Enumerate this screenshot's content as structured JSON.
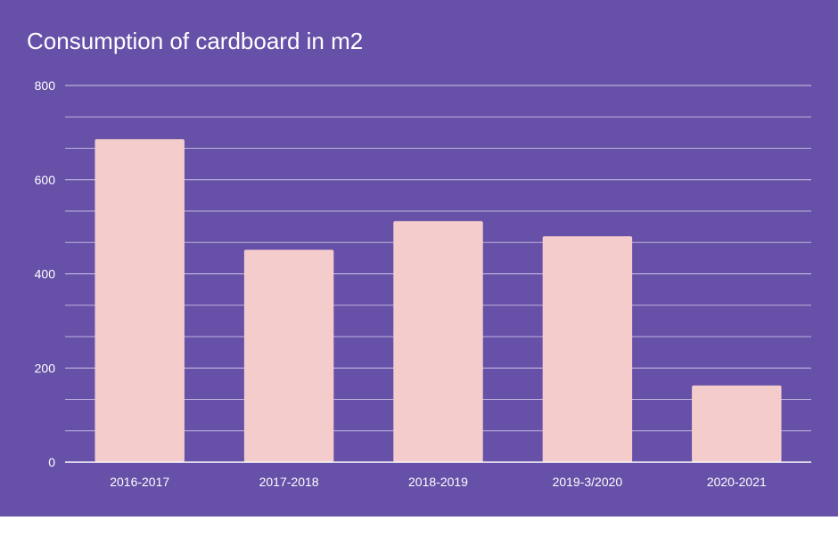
{
  "chart_data": {
    "type": "bar",
    "title": "Consumption of cardboard in m2",
    "categories": [
      "2016-2017",
      "2017-2018",
      "2018-2019",
      "2019-3/2020",
      "2020-2021"
    ],
    "series": [
      {
        "name": "Consumption of cardboard in m2",
        "values": [
          686,
          451,
          512,
          480,
          163
        ]
      }
    ],
    "xlabel": "",
    "ylabel": "",
    "ylim": [
      0,
      800
    ],
    "yticks": [
      0,
      200,
      400,
      600,
      800
    ],
    "minor_gridlines": true,
    "legend": "none"
  },
  "colors": {
    "background": "#6750a8",
    "bar": "#f4cccc",
    "gridline": "#cfc6e6",
    "text": "#ffffff"
  }
}
